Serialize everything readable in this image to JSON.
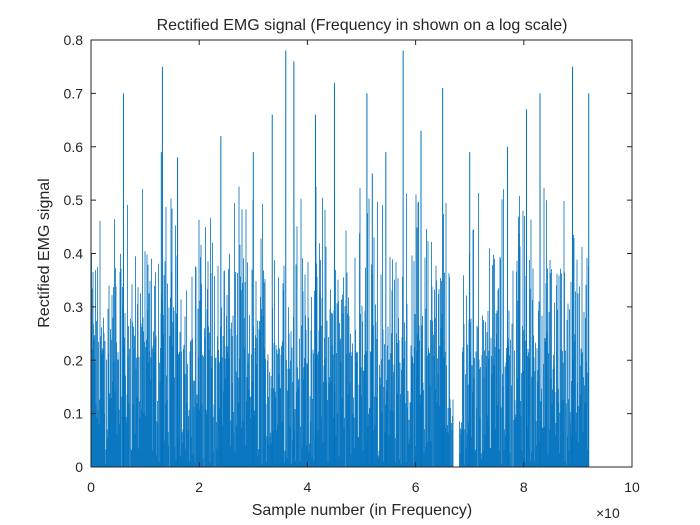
{
  "chart_data": {
    "type": "bar",
    "title": "Rectified EMG signal (Frequency in shown on a log scale)",
    "xlabel": "Sample number (in Frequency)",
    "ylabel": "Rectified EMG signal",
    "xlim": [
      0,
      10
    ],
    "ylim": [
      0,
      0.8
    ],
    "x_exponent_label": "×10",
    "x_ticks": [
      {
        "value": 0,
        "label": "0"
      },
      {
        "value": 2,
        "label": "2"
      },
      {
        "value": 4,
        "label": "4"
      },
      {
        "value": 6,
        "label": "6"
      },
      {
        "value": 8,
        "label": "8"
      },
      {
        "value": 10,
        "label": "10"
      }
    ],
    "y_ticks": [
      {
        "value": 0,
        "label": "0"
      },
      {
        "value": 0.1,
        "label": "0.1"
      },
      {
        "value": 0.2,
        "label": "0.2"
      },
      {
        "value": 0.3,
        "label": "0.3"
      },
      {
        "value": 0.4,
        "label": "0.4"
      },
      {
        "value": 0.5,
        "label": "0.5"
      },
      {
        "value": 0.6,
        "label": "0.6"
      },
      {
        "value": 0.7,
        "label": "0.7"
      },
      {
        "value": 0.8,
        "label": "0.8"
      }
    ],
    "grid": false,
    "series_color": "#0072BD",
    "signal_extent": [
      0,
      9.2
    ],
    "gap_at": 6.75,
    "dense_level": 0.4,
    "peaks": [
      {
        "x": 0.6,
        "y": 0.7
      },
      {
        "x": 1.3,
        "y": 0.59
      },
      {
        "x": 1.32,
        "y": 0.75
      },
      {
        "x": 1.6,
        "y": 0.58
      },
      {
        "x": 2.4,
        "y": 0.62
      },
      {
        "x": 3.0,
        "y": 0.59
      },
      {
        "x": 3.35,
        "y": 0.66
      },
      {
        "x": 3.6,
        "y": 0.78
      },
      {
        "x": 3.75,
        "y": 0.76
      },
      {
        "x": 4.15,
        "y": 0.66
      },
      {
        "x": 4.5,
        "y": 0.72
      },
      {
        "x": 5.1,
        "y": 0.7
      },
      {
        "x": 5.2,
        "y": 0.55
      },
      {
        "x": 5.45,
        "y": 0.59
      },
      {
        "x": 5.77,
        "y": 0.78
      },
      {
        "x": 6.1,
        "y": 0.63
      },
      {
        "x": 6.5,
        "y": 0.71
      },
      {
        "x": 7.0,
        "y": 0.59
      },
      {
        "x": 7.7,
        "y": 0.6
      },
      {
        "x": 8.05,
        "y": 0.67
      },
      {
        "x": 8.3,
        "y": 0.7
      },
      {
        "x": 8.9,
        "y": 0.75
      },
      {
        "x": 9.35,
        "y": 0.7
      }
    ]
  }
}
